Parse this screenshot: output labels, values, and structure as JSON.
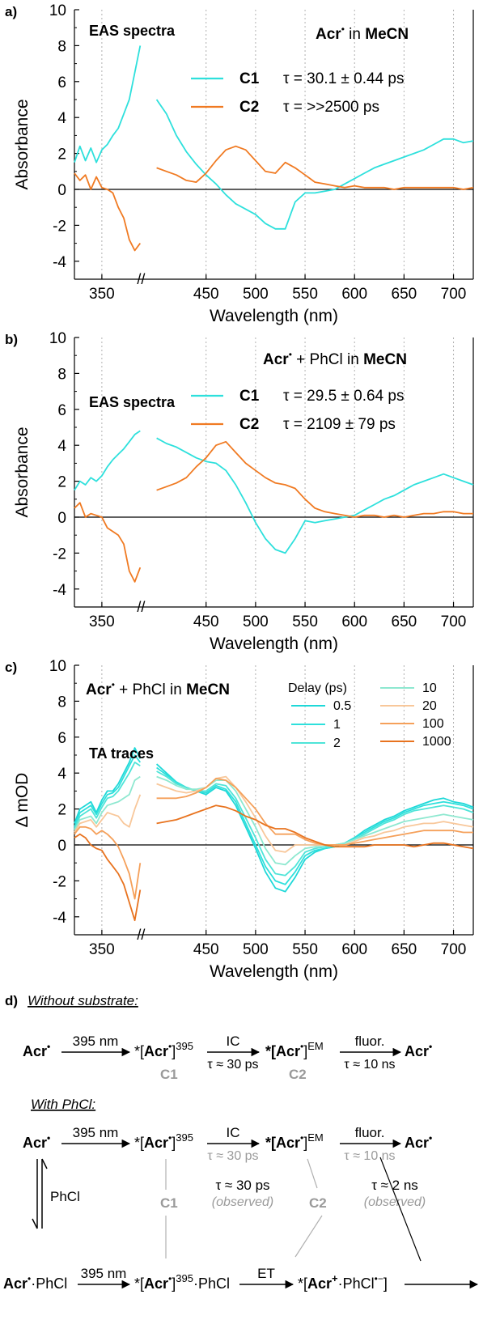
{
  "colors": {
    "cyan": "#2ee0dc",
    "orange": "#f07a22",
    "grid": "#b0b0b0",
    "grey": "#9a9a9a"
  },
  "chart_data": [
    {
      "panel": "a)",
      "type": "line",
      "title": "EAS spectra",
      "annotation_species": "Acr",
      "annotation_solvent": "MeCN",
      "annotation_in": "in",
      "xlabel": "Wavelength (nm)",
      "ylabel": "Absorbance",
      "xlim": [
        325,
        720
      ],
      "ylim": [
        -5,
        10
      ],
      "xticks": [
        350,
        450,
        500,
        550,
        600,
        650,
        700
      ],
      "yticks": [
        -4,
        -2,
        0,
        2,
        4,
        6,
        8,
        10
      ],
      "axis_break": "//",
      "series": [
        {
          "name": "C1",
          "tau": "τ = 30.1 ± 0.44 ps",
          "color": "#2ee0dc",
          "x": [
            325,
            330,
            335,
            340,
            345,
            350,
            355,
            360,
            365,
            370,
            375,
            380,
            385,
            390,
            400,
            410,
            420,
            430,
            440,
            450,
            460,
            470,
            480,
            490,
            500,
            510,
            520,
            530,
            540,
            550,
            560,
            570,
            580,
            590,
            600,
            610,
            620,
            630,
            640,
            650,
            660,
            670,
            680,
            690,
            700,
            710,
            720
          ],
          "y": [
            1.5,
            2.4,
            1.6,
            2.3,
            1.5,
            2.2,
            2.5,
            3.0,
            3.4,
            4.2,
            5.0,
            6.5,
            8.0,
            null,
            5.0,
            4.2,
            3.0,
            2.1,
            1.4,
            0.8,
            0.3,
            -0.3,
            -0.8,
            -1.1,
            -1.4,
            -1.9,
            -2.2,
            -2.2,
            -0.7,
            -0.2,
            -0.2,
            -0.1,
            0.0,
            0.3,
            0.6,
            0.9,
            1.2,
            1.4,
            1.6,
            1.8,
            2.0,
            2.2,
            2.5,
            2.8,
            2.8,
            2.6,
            2.7
          ]
        },
        {
          "name": "C2",
          "tau": "τ = >>2500 ps",
          "color": "#f07a22",
          "x": [
            325,
            330,
            335,
            340,
            345,
            350,
            355,
            360,
            365,
            370,
            375,
            380,
            385,
            390,
            400,
            410,
            420,
            430,
            440,
            450,
            460,
            470,
            480,
            490,
            500,
            510,
            520,
            530,
            540,
            550,
            560,
            570,
            580,
            590,
            600,
            610,
            620,
            630,
            640,
            650,
            660,
            670,
            680,
            690,
            700,
            710,
            720
          ],
          "y": [
            0.9,
            0.5,
            0.8,
            0.0,
            0.7,
            0.1,
            0.0,
            -0.2,
            -1.0,
            -1.6,
            -2.8,
            -3.4,
            -3.0,
            null,
            1.2,
            1.0,
            0.8,
            0.5,
            0.4,
            0.9,
            1.6,
            2.2,
            2.4,
            2.2,
            1.6,
            1.0,
            0.9,
            1.5,
            1.2,
            0.8,
            0.4,
            0.3,
            0.2,
            0.1,
            0.2,
            0.1,
            0.1,
            0.1,
            0.0,
            0.1,
            0.1,
            0.1,
            0.1,
            0.1,
            0.1,
            0.0,
            0.1
          ]
        }
      ]
    },
    {
      "panel": "b)",
      "type": "line",
      "title": "EAS spectra",
      "annotation_species": "Acr",
      "annotation_plus": "+ PhCl in",
      "annotation_solvent": "MeCN",
      "xlabel": "Wavelength (nm)",
      "ylabel": "Absorbance",
      "xlim": [
        325,
        720
      ],
      "ylim": [
        -5,
        10
      ],
      "xticks": [
        350,
        450,
        500,
        550,
        600,
        650,
        700
      ],
      "yticks": [
        -4,
        -2,
        0,
        2,
        4,
        6,
        8,
        10
      ],
      "axis_break": "//",
      "series": [
        {
          "name": "C1",
          "tau": "τ = 29.5 ± 0.64 ps",
          "color": "#2ee0dc",
          "x": [
            325,
            330,
            335,
            340,
            345,
            350,
            355,
            360,
            365,
            370,
            375,
            380,
            385,
            390,
            400,
            410,
            420,
            430,
            440,
            450,
            460,
            470,
            480,
            490,
            500,
            510,
            520,
            530,
            540,
            550,
            560,
            570,
            580,
            590,
            600,
            610,
            620,
            630,
            640,
            650,
            660,
            670,
            680,
            690,
            700,
            710,
            720
          ],
          "y": [
            1.5,
            2.0,
            1.8,
            2.2,
            2.0,
            2.3,
            2.8,
            3.2,
            3.5,
            3.8,
            4.2,
            4.6,
            4.8,
            null,
            4.4,
            4.1,
            3.9,
            3.6,
            3.3,
            3.1,
            3.0,
            2.6,
            1.8,
            0.8,
            -0.3,
            -1.2,
            -1.8,
            -2.0,
            -1.2,
            -0.2,
            -0.3,
            -0.2,
            -0.1,
            0.0,
            0.1,
            0.4,
            0.7,
            1.0,
            1.2,
            1.5,
            1.8,
            2.0,
            2.2,
            2.4,
            2.2,
            2.0,
            1.8
          ]
        },
        {
          "name": "C2",
          "tau": "τ = 2109 ± 79 ps",
          "color": "#f07a22",
          "x": [
            325,
            330,
            335,
            340,
            345,
            350,
            355,
            360,
            365,
            370,
            375,
            380,
            385,
            390,
            400,
            410,
            420,
            430,
            440,
            450,
            460,
            470,
            480,
            490,
            500,
            510,
            520,
            530,
            540,
            550,
            560,
            570,
            580,
            590,
            600,
            610,
            620,
            630,
            640,
            650,
            660,
            670,
            680,
            690,
            700,
            710,
            720
          ],
          "y": [
            0.5,
            0.8,
            0.0,
            0.2,
            0.1,
            0.0,
            -0.6,
            -0.8,
            -1.0,
            -1.5,
            -3.0,
            -3.6,
            -2.8,
            null,
            1.5,
            1.7,
            1.9,
            2.2,
            2.8,
            3.3,
            4.0,
            4.2,
            3.6,
            3.0,
            2.6,
            2.2,
            1.9,
            1.8,
            1.6,
            1.0,
            0.5,
            0.3,
            0.2,
            0.1,
            0.0,
            0.1,
            0.1,
            0.0,
            0.1,
            0.0,
            0.1,
            0.2,
            0.2,
            0.3,
            0.3,
            0.2,
            0.2
          ]
        }
      ]
    },
    {
      "panel": "c)",
      "type": "line",
      "title": "TA traces",
      "annotation_species": "Acr",
      "annotation_plus": "+ PhCl in",
      "annotation_solvent": "MeCN",
      "xlabel": "Wavelength (nm)",
      "ylabel": "Δ mOD",
      "legend_title": "Delay (ps)",
      "xlim": [
        325,
        720
      ],
      "ylim": [
        -5,
        10
      ],
      "xticks": [
        350,
        450,
        500,
        550,
        600,
        650,
        700
      ],
      "yticks": [
        -4,
        -2,
        0,
        2,
        4,
        6,
        8,
        10
      ],
      "axis_break": "//",
      "x": [
        325,
        330,
        335,
        340,
        345,
        350,
        355,
        360,
        365,
        370,
        375,
        380,
        385,
        390,
        400,
        410,
        420,
        430,
        440,
        450,
        460,
        470,
        480,
        490,
        500,
        510,
        520,
        530,
        540,
        550,
        560,
        570,
        580,
        590,
        600,
        610,
        620,
        630,
        640,
        650,
        660,
        670,
        680,
        690,
        700,
        710,
        720
      ],
      "series": [
        {
          "name": "0.5",
          "color": "#1ed8d8",
          "y": [
            1.2,
            2.0,
            2.2,
            2.4,
            1.8,
            2.5,
            3.0,
            3.0,
            3.4,
            4.0,
            4.6,
            5.4,
            4.8,
            null,
            4.5,
            4.0,
            3.5,
            3.2,
            3.0,
            2.8,
            3.2,
            3.0,
            2.2,
            1.0,
            -0.2,
            -1.5,
            -2.4,
            -2.6,
            -1.8,
            -0.8,
            -0.4,
            -0.2,
            -0.1,
            0.1,
            0.4,
            0.8,
            1.1,
            1.4,
            1.6,
            1.9,
            2.1,
            2.3,
            2.5,
            2.6,
            2.4,
            2.3,
            2.1
          ]
        },
        {
          "name": "1",
          "color": "#2ee0dc",
          "y": [
            1.0,
            1.8,
            2.0,
            2.2,
            1.7,
            2.3,
            2.8,
            2.9,
            3.2,
            3.8,
            4.4,
            5.0,
            4.6,
            null,
            4.3,
            3.9,
            3.5,
            3.2,
            3.0,
            2.9,
            3.3,
            3.1,
            2.4,
            1.2,
            0.0,
            -1.2,
            -2.0,
            -2.2,
            -1.5,
            -0.6,
            -0.3,
            -0.2,
            -0.1,
            0.1,
            0.4,
            0.7,
            1.0,
            1.3,
            1.5,
            1.8,
            2.0,
            2.2,
            2.3,
            2.4,
            2.3,
            2.2,
            2.0
          ]
        },
        {
          "name": "2",
          "color": "#4fe4d8",
          "y": [
            0.9,
            1.6,
            1.8,
            2.0,
            1.5,
            2.1,
            2.6,
            2.7,
            3.0,
            3.5,
            4.0,
            4.6,
            4.4,
            null,
            4.1,
            3.8,
            3.4,
            3.2,
            3.0,
            3.0,
            3.4,
            3.3,
            2.6,
            1.5,
            0.4,
            -0.8,
            -1.6,
            -1.7,
            -1.2,
            -0.4,
            -0.2,
            -0.1,
            0.0,
            0.1,
            0.3,
            0.6,
            0.9,
            1.2,
            1.4,
            1.7,
            1.9,
            2.0,
            2.1,
            2.2,
            2.1,
            2.0,
            1.8
          ]
        },
        {
          "name": "10",
          "color": "#8ee8d0",
          "y": [
            0.8,
            1.4,
            1.5,
            1.6,
            1.2,
            1.8,
            2.2,
            2.3,
            2.4,
            2.6,
            2.8,
            3.6,
            3.8,
            null,
            3.8,
            3.6,
            3.3,
            3.1,
            3.1,
            3.2,
            3.6,
            3.6,
            3.0,
            2.0,
            1.0,
            -0.2,
            -1.0,
            -1.1,
            -0.6,
            -0.2,
            -0.1,
            0.0,
            0.0,
            0.1,
            0.3,
            0.5,
            0.7,
            0.9,
            1.1,
            1.3,
            1.4,
            1.5,
            1.6,
            1.7,
            1.6,
            1.5,
            1.4
          ]
        },
        {
          "name": "20",
          "color": "#f8c79a",
          "y": [
            0.7,
            1.2,
            1.3,
            1.4,
            1.0,
            1.4,
            1.8,
            1.7,
            1.6,
            1.2,
            1.0,
            2.0,
            2.8,
            null,
            3.4,
            3.2,
            3.0,
            2.9,
            3.0,
            3.2,
            3.7,
            3.8,
            3.2,
            2.4,
            1.5,
            0.5,
            -0.3,
            -0.4,
            0.0,
            0.0,
            0.0,
            0.0,
            0.0,
            0.0,
            0.2,
            0.4,
            0.5,
            0.7,
            0.8,
            1.0,
            1.1,
            1.2,
            1.2,
            1.3,
            1.2,
            1.1,
            1.0
          ]
        },
        {
          "name": "100",
          "color": "#f5a05a",
          "y": [
            0.6,
            1.0,
            1.0,
            0.9,
            0.6,
            0.8,
            0.6,
            0.3,
            -0.1,
            -0.8,
            -1.6,
            -3.0,
            -1.0,
            null,
            2.6,
            2.6,
            2.6,
            2.7,
            2.9,
            3.2,
            3.7,
            3.6,
            3.2,
            2.6,
            2.0,
            1.2,
            0.6,
            0.6,
            0.6,
            0.3,
            0.1,
            0.0,
            0.0,
            0.0,
            0.1,
            0.2,
            0.3,
            0.4,
            0.5,
            0.6,
            0.7,
            0.8,
            0.8,
            0.8,
            0.8,
            0.7,
            0.7
          ]
        },
        {
          "name": "1000",
          "color": "#e8731f",
          "y": [
            0.4,
            0.6,
            0.4,
            0.0,
            -0.2,
            -0.3,
            -0.8,
            -1.2,
            -1.6,
            -2.2,
            -3.2,
            -4.2,
            -2.5,
            null,
            1.2,
            1.3,
            1.4,
            1.6,
            1.8,
            2.0,
            2.2,
            2.1,
            1.9,
            1.6,
            1.4,
            1.1,
            0.9,
            0.9,
            0.7,
            0.4,
            0.2,
            0.0,
            -0.1,
            -0.1,
            -0.1,
            -0.1,
            0.0,
            0.0,
            0.0,
            0.0,
            -0.1,
            0.0,
            0.1,
            0.1,
            0.0,
            -0.1,
            -0.2
          ]
        }
      ]
    }
  ],
  "scheme": {
    "label": "d)",
    "without_title": "Without substrate:",
    "with_title": "With PhCl:",
    "acr": "Acr",
    "excite_label": "395 nm",
    "excited395_open": "*[",
    "excited395_species": "Acr",
    "excited395_close": "]",
    "excited395_sup": "395",
    "ic_label": "IC",
    "ic_tau": "τ ≈ 30 ps",
    "em_open": "*[",
    "em_species": "Acr",
    "em_close": "]",
    "em_sup": "EM",
    "fluor_label": "fluor.",
    "fluor_tau": "τ ≈ 10 ns",
    "c1": "C1",
    "c2": "C2",
    "phcl": "PhCl",
    "tau_obs_30": "τ ≈ 30 ps",
    "tau_obs_2": "τ ≈ 2 ns",
    "observed": "(observed)",
    "complex_suffix": "·PhCl",
    "et_label": "ET",
    "cs_open": "*[",
    "cs_acr": "Acr",
    "cs_plus": "+",
    "cs_mid": "·PhCl",
    "cs_minus": "•−",
    "cs_close": "]"
  }
}
